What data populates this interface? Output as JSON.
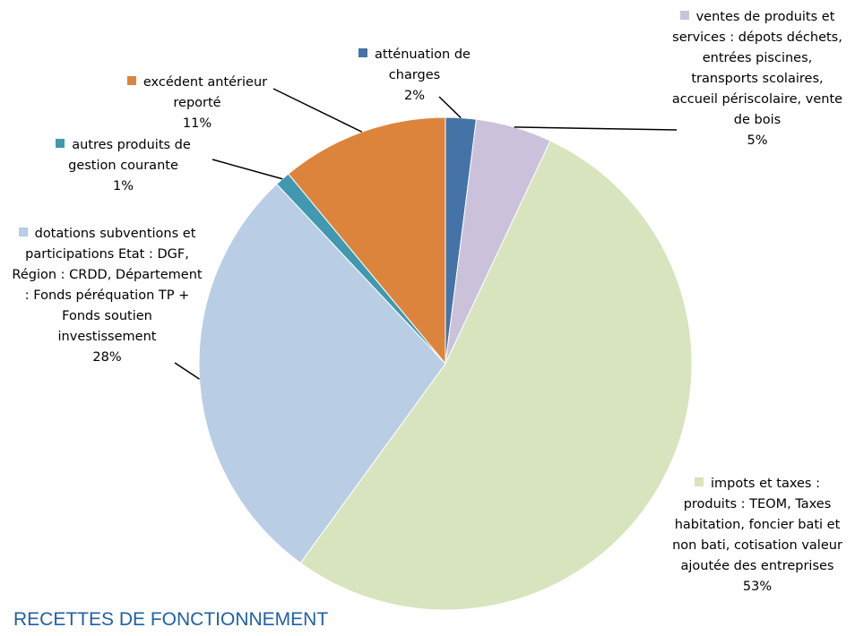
{
  "chart_data": {
    "type": "pie",
    "title": "RECETTES DE FONCTIONNEMENT",
    "categories": [
      "atténuation de charges",
      "ventes de produits et services : dépots déchets, entrées piscines, transports scolaires, accueil périscolaire, vente de bois",
      "impots et taxes : produits : TEOM, Taxes habitation, foncier bati et non bati, cotisation valeur ajoutée des entreprises",
      "dotations subventions et participations Etat : DGF, Région : CRDD, Département : Fonds péréquation TP + Fonds soutien investissement",
      "autres produits de gestion courante",
      "excédent antérieur reporté"
    ],
    "values": [
      2,
      5,
      53,
      28,
      1,
      11
    ],
    "value_labels": [
      "2%",
      "5%",
      "53%",
      "28%",
      "1%",
      "11%"
    ],
    "colors": [
      "#4573a7",
      "#ccc1da",
      "#d7e4bd",
      "#b9cde5",
      "#4198af",
      "#dd843c"
    ]
  }
}
